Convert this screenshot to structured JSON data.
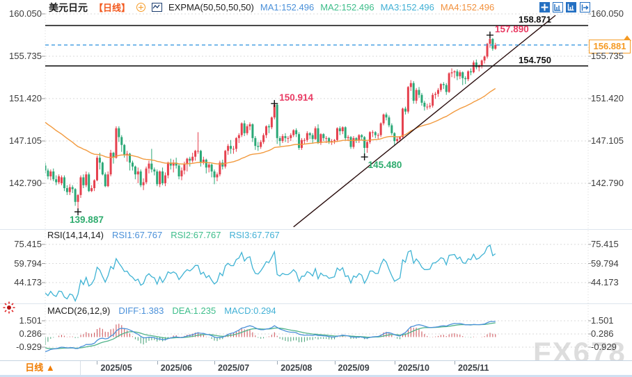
{
  "header": {
    "symbol": "美元日元",
    "period": "【日线】",
    "indicator": "EXPMA(50,50,50,50)",
    "ma1": "MA1:152.496",
    "ma2": "MA2:152.496",
    "ma3": "MA3:152.496",
    "ma4": "MA4:152.496"
  },
  "toolbar": {
    "icons": [
      "crosshair",
      "axis-scale",
      "axis-scale-active",
      "exit-right"
    ]
  },
  "rsi_header": {
    "title": "RSI(14,14,14)",
    "r1": "RSI1:67.767",
    "r2": "RSI2:67.767",
    "r3": "RSI3:67.767"
  },
  "macd_header": {
    "title": "MACD(26,12,9)",
    "diff": "DIFF:1.383",
    "dea": "DEA:1.235",
    "macd": "MACD:0.294"
  },
  "tab_bar": {
    "period": "日线",
    "arrow": "▲"
  },
  "watermark": "FX678",
  "chart_data": {
    "type": "candlestick",
    "title": "美元日元",
    "interval": "日线 (daily)",
    "price_ticks": [
      "160.050",
      "155.735",
      "151.420",
      "147.105",
      "142.790"
    ],
    "rsi_ticks": [
      "75.415",
      "59.794",
      "44.173"
    ],
    "macd_ticks": [
      "1.501",
      "0.286",
      "-0.929"
    ],
    "months": [
      {
        "label": "2025/05",
        "bar": 19
      },
      {
        "label": "2025/06",
        "bar": 41
      },
      {
        "label": "2025/07",
        "bar": 62
      },
      {
        "label": "2025/08",
        "bar": 85
      },
      {
        "label": "2025/09",
        "bar": 106
      },
      {
        "label": "2025/10",
        "bar": 128
      },
      {
        "label": "2025/11",
        "bar": 150
      }
    ],
    "hlines": [
      {
        "price": 158.871,
        "label": "158.871"
      },
      {
        "price": 154.75,
        "label": "154.750"
      }
    ],
    "current_price": {
      "value": 156.881,
      "label": "156.881"
    },
    "extremes": [
      {
        "bar": 12,
        "price": 139.887,
        "label": "139.887",
        "kind": "low"
      },
      {
        "bar": 84,
        "price": 150.914,
        "label": "150.914",
        "kind": "high"
      },
      {
        "bar": 117,
        "price": 145.48,
        "label": "145.480",
        "kind": "low"
      },
      {
        "bar": 163,
        "price": 157.89,
        "label": "157.890",
        "kind": "high"
      }
    ],
    "trendline": {
      "from_bar": 91,
      "from_price": 138.35,
      "to_bar": 187,
      "to_price": 159.9
    },
    "expma_start": 149.2,
    "colors": {
      "up": "#e5414e",
      "down": "#2aa876",
      "expma": "#f29a3e",
      "rsi_line": "#3fb3d4",
      "diff_line": "#4a90d9",
      "dea_line": "#4fb389",
      "hist_pos": "#cc4b52",
      "hist_neg": "#3e9e72",
      "current_line": "#3b9ae1",
      "tag": "#f59a23",
      "annotation_high": "#e93b63",
      "annotation_low": "#2eac6e",
      "hline": "#1a1a1a",
      "trend": "#2b0f0f",
      "grid": "#d9d9d9"
    },
    "candles": [
      [
        144.6,
        144.9,
        143.8,
        144.1
      ],
      [
        144.1,
        144.3,
        143.2,
        143.5
      ],
      [
        143.5,
        144.2,
        143.1,
        144.0
      ],
      [
        144.0,
        144.3,
        143.0,
        143.2
      ],
      [
        143.2,
        143.6,
        142.6,
        142.9
      ],
      [
        142.9,
        143.7,
        142.7,
        143.5
      ],
      [
        142.8,
        143.6,
        142.6,
        143.4
      ],
      [
        143.4,
        143.6,
        142.0,
        142.3
      ],
      [
        142.3,
        142.6,
        141.6,
        141.9
      ],
      [
        141.9,
        142.7,
        141.6,
        142.4
      ],
      [
        142.4,
        142.6,
        141.8,
        142.2
      ],
      [
        142.2,
        142.3,
        140.5,
        140.9
      ],
      [
        140.9,
        141.7,
        139.887,
        141.6
      ],
      [
        141.6,
        143.6,
        141.3,
        143.4
      ],
      [
        143.4,
        143.7,
        142.3,
        142.6
      ],
      [
        142.6,
        144.0,
        142.4,
        143.7
      ],
      [
        143.7,
        143.9,
        141.9,
        142.0
      ],
      [
        142.0,
        142.6,
        141.9,
        142.3
      ],
      [
        142.3,
        143.2,
        142.0,
        143.1
      ],
      [
        143.1,
        145.6,
        143.0,
        145.4
      ],
      [
        145.4,
        145.9,
        144.2,
        144.9
      ],
      [
        144.9,
        145.0,
        143.6,
        143.7
      ],
      [
        143.7,
        143.9,
        142.4,
        142.5
      ],
      [
        142.5,
        144.0,
        142.4,
        143.7
      ],
      [
        143.7,
        146.2,
        143.5,
        145.9
      ],
      [
        145.9,
        146.0,
        144.8,
        145.4
      ],
      [
        145.4,
        148.6,
        145.3,
        148.4
      ],
      [
        148.4,
        148.6,
        147.0,
        147.5
      ],
      [
        147.5,
        147.7,
        146.0,
        146.7
      ],
      [
        146.7,
        146.8,
        145.4,
        145.7
      ],
      [
        145.7,
        146.1,
        145.0,
        145.8
      ],
      [
        145.8,
        145.9,
        144.1,
        144.9
      ],
      [
        144.9,
        145.1,
        144.1,
        144.5
      ],
      [
        144.5,
        144.6,
        143.2,
        143.7
      ],
      [
        143.7,
        144.4,
        142.8,
        144.0
      ],
      [
        144.0,
        144.2,
        142.4,
        142.6
      ],
      [
        142.6,
        143.3,
        142.1,
        142.9
      ],
      [
        142.9,
        144.5,
        142.7,
        144.3
      ],
      [
        144.3,
        145.1,
        143.8,
        144.8
      ],
      [
        144.8,
        146.3,
        143.9,
        144.2
      ],
      [
        144.2,
        144.4,
        143.6,
        144.0
      ],
      [
        144.0,
        144.2,
        142.5,
        142.7
      ],
      [
        142.7,
        144.1,
        142.4,
        144.0
      ],
      [
        144.0,
        144.4,
        142.6,
        142.8
      ],
      [
        142.8,
        143.9,
        142.5,
        143.6
      ],
      [
        143.6,
        145.0,
        143.3,
        144.9
      ],
      [
        144.9,
        145.3,
        144.2,
        144.6
      ],
      [
        144.6,
        145.2,
        143.9,
        144.9
      ],
      [
        144.9,
        145.4,
        144.3,
        144.6
      ],
      [
        144.6,
        144.8,
        143.2,
        143.5
      ],
      [
        143.5,
        144.4,
        143.1,
        144.1
      ],
      [
        144.1,
        145.0,
        143.7,
        144.8
      ],
      [
        144.8,
        145.4,
        144.0,
        145.3
      ],
      [
        145.3,
        145.5,
        144.5,
        145.1
      ],
      [
        145.1,
        145.9,
        144.9,
        145.5
      ],
      [
        145.5,
        146.2,
        145.1,
        146.1
      ],
      [
        146.1,
        148.0,
        145.8,
        146.1
      ],
      [
        146.1,
        146.2,
        144.5,
        144.9
      ],
      [
        144.9,
        145.5,
        144.7,
        145.2
      ],
      [
        145.2,
        145.3,
        143.8,
        144.4
      ],
      [
        144.4,
        144.9,
        143.9,
        144.7
      ],
      [
        144.7,
        144.8,
        143.4,
        144.0
      ],
      [
        144.0,
        144.2,
        142.7,
        143.4
      ],
      [
        143.4,
        143.9,
        143.0,
        143.7
      ],
      [
        143.7,
        145.1,
        143.5,
        144.9
      ],
      [
        144.9,
        145.2,
        144.2,
        144.5
      ],
      [
        144.5,
        146.2,
        144.3,
        146.1
      ],
      [
        146.1,
        146.8,
        145.7,
        146.6
      ],
      [
        146.6,
        147.2,
        145.8,
        146.3
      ],
      [
        146.3,
        146.6,
        145.8,
        146.3
      ],
      [
        146.3,
        147.5,
        146.0,
        147.4
      ],
      [
        147.4,
        147.9,
        146.9,
        147.7
      ],
      [
        147.7,
        149.0,
        147.5,
        148.9
      ],
      [
        148.9,
        149.2,
        147.6,
        147.9
      ],
      [
        147.9,
        148.8,
        147.7,
        148.6
      ],
      [
        148.6,
        149.0,
        148.2,
        148.8
      ],
      [
        148.8,
        148.9,
        147.0,
        147.4
      ],
      [
        147.4,
        147.6,
        146.2,
        146.6
      ],
      [
        146.6,
        147.0,
        146.1,
        146.5
      ],
      [
        146.5,
        147.2,
        146.3,
        147.0
      ],
      [
        147.0,
        147.9,
        146.8,
        147.7
      ],
      [
        147.7,
        148.7,
        147.4,
        148.6
      ],
      [
        148.6,
        148.8,
        147.9,
        148.5
      ],
      [
        148.5,
        149.6,
        148.3,
        149.5
      ],
      [
        149.5,
        150.914,
        149.3,
        150.8
      ],
      [
        150.8,
        150.9,
        146.8,
        147.4
      ],
      [
        147.4,
        147.6,
        146.6,
        147.1
      ],
      [
        147.1,
        147.8,
        146.9,
        147.6
      ],
      [
        147.6,
        147.9,
        147.0,
        147.4
      ],
      [
        147.4,
        147.6,
        146.9,
        147.4
      ],
      [
        147.4,
        147.9,
        147.1,
        147.7
      ],
      [
        147.7,
        148.3,
        147.5,
        148.2
      ],
      [
        148.2,
        148.4,
        147.5,
        147.8
      ],
      [
        147.8,
        148.0,
        146.2,
        146.4
      ],
      [
        146.4,
        147.4,
        146.2,
        147.2
      ],
      [
        147.2,
        147.4,
        146.8,
        147.2
      ],
      [
        147.2,
        148.1,
        147.0,
        147.9
      ],
      [
        147.9,
        148.0,
        147.3,
        147.7
      ],
      [
        147.7,
        147.9,
        146.9,
        147.3
      ],
      [
        147.3,
        148.6,
        147.2,
        148.4
      ],
      [
        148.4,
        148.8,
        146.8,
        146.9
      ],
      [
        146.9,
        147.9,
        146.7,
        147.8
      ],
      [
        147.8,
        147.9,
        147.1,
        147.4
      ],
      [
        147.4,
        147.6,
        146.9,
        147.4
      ],
      [
        147.4,
        147.5,
        146.8,
        147.0
      ],
      [
        147.0,
        147.3,
        146.7,
        147.1
      ],
      [
        147.1,
        147.3,
        146.8,
        147.2
      ],
      [
        147.2,
        148.5,
        147.0,
        148.4
      ],
      [
        148.4,
        148.6,
        147.7,
        148.1
      ],
      [
        148.1,
        148.6,
        147.8,
        148.5
      ],
      [
        148.5,
        148.6,
        147.2,
        147.4
      ],
      [
        147.4,
        147.7,
        147.1,
        147.5
      ],
      [
        147.5,
        147.6,
        146.3,
        146.5
      ],
      [
        146.5,
        147.6,
        146.3,
        147.4
      ],
      [
        147.4,
        147.5,
        146.9,
        147.2
      ],
      [
        147.2,
        147.8,
        146.9,
        147.7
      ],
      [
        147.7,
        147.8,
        147.2,
        147.5
      ],
      [
        147.5,
        147.6,
        145.48,
        146.4
      ],
      [
        146.4,
        147.1,
        145.9,
        147.0
      ],
      [
        147.0,
        148.1,
        146.8,
        148.0
      ],
      [
        148.0,
        148.2,
        147.5,
        148.0
      ],
      [
        148.0,
        148.1,
        147.4,
        147.7
      ],
      [
        147.7,
        147.9,
        147.3,
        147.7
      ],
      [
        147.7,
        149.0,
        147.5,
        148.9
      ],
      [
        148.9,
        149.9,
        148.7,
        149.8
      ],
      [
        149.8,
        150.0,
        149.2,
        149.5
      ],
      [
        149.5,
        149.7,
        148.5,
        148.7
      ],
      [
        148.7,
        148.9,
        147.7,
        147.9
      ],
      [
        147.9,
        148.0,
        146.6,
        147.1
      ],
      [
        147.1,
        147.5,
        146.9,
        147.3
      ],
      [
        147.3,
        147.6,
        147.0,
        147.5
      ],
      [
        147.5,
        150.5,
        147.4,
        150.4
      ],
      [
        150.4,
        150.6,
        149.8,
        150.1
      ],
      [
        150.1,
        152.7,
        149.9,
        152.6
      ],
      [
        152.6,
        153.3,
        152.2,
        153.0
      ],
      [
        153.0,
        153.2,
        150.9,
        151.2
      ],
      [
        151.2,
        152.5,
        150.9,
        152.3
      ],
      [
        152.3,
        152.6,
        151.5,
        151.8
      ],
      [
        151.8,
        152.0,
        150.7,
        151.0
      ],
      [
        151.0,
        151.2,
        150.2,
        150.6
      ],
      [
        150.6,
        150.9,
        150.3,
        150.6
      ],
      [
        150.6,
        151.0,
        150.4,
        150.7
      ],
      [
        150.7,
        152.0,
        150.5,
        151.8
      ],
      [
        151.8,
        152.1,
        151.4,
        151.9
      ],
      [
        151.9,
        152.5,
        151.6,
        152.3
      ],
      [
        152.3,
        153.0,
        152.1,
        152.9
      ],
      [
        152.9,
        153.1,
        152.4,
        152.8
      ],
      [
        152.8,
        153.0,
        151.8,
        152.1
      ],
      [
        152.1,
        154.1,
        152.0,
        154.0
      ],
      [
        154.0,
        154.5,
        153.6,
        154.1
      ],
      [
        154.1,
        154.3,
        153.5,
        154.2
      ],
      [
        154.2,
        154.4,
        153.3,
        153.7
      ],
      [
        153.7,
        154.3,
        153.4,
        154.1
      ],
      [
        154.1,
        154.2,
        152.8,
        153.5
      ],
      [
        153.5,
        153.7,
        152.9,
        153.4
      ],
      [
        153.4,
        154.3,
        153.2,
        154.2
      ],
      [
        154.2,
        154.5,
        153.8,
        154.1
      ],
      [
        154.1,
        155.3,
        154.0,
        155.1
      ],
      [
        155.1,
        155.4,
        154.4,
        154.6
      ],
      [
        154.6,
        154.9,
        154.2,
        154.8
      ],
      [
        154.8,
        155.4,
        154.5,
        155.3
      ],
      [
        155.3,
        155.8,
        155.0,
        155.7
      ],
      [
        155.7,
        157.1,
        155.5,
        157.0
      ],
      [
        157.0,
        157.89,
        156.6,
        157.5
      ],
      [
        157.5,
        157.6,
        156.3,
        156.5
      ],
      [
        156.5,
        157.1,
        156.4,
        156.881
      ]
    ]
  }
}
